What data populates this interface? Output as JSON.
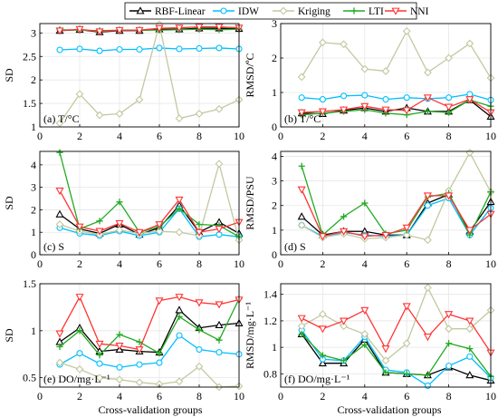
{
  "legend": [
    {
      "name": "RBF-Linear",
      "color": "#000000",
      "marker": "triangle-up"
    },
    {
      "name": "IDW",
      "color": "#00bfff",
      "marker": "circle"
    },
    {
      "name": "Kriging",
      "color": "#c2c8a0",
      "marker": "diamond"
    },
    {
      "name": "LTI",
      "color": "#22aa22",
      "marker": "plus"
    },
    {
      "name": "NNI",
      "color": "#ff3333",
      "marker": "triangle-down"
    }
  ],
  "xlabel": "Cross-validation groups",
  "chart_data": [
    {
      "id": "a",
      "type": "line",
      "panel_label": "(a) T/°C",
      "ylabel": "SD",
      "xlim": [
        0,
        10
      ],
      "ylim": [
        1,
        3.2
      ],
      "xticks": [
        "0",
        "2",
        "4",
        "6",
        "8",
        "10"
      ],
      "yticks": [
        "1",
        "1.5",
        "2",
        "2.5",
        "3"
      ],
      "x": [
        1,
        2,
        3,
        4,
        5,
        6,
        7,
        8,
        9,
        10
      ],
      "series": [
        {
          "name": "RBF-Linear",
          "values": [
            3.05,
            3.07,
            3.02,
            3.05,
            3.05,
            3.08,
            3.08,
            3.1,
            3.1,
            3.09
          ]
        },
        {
          "name": "IDW",
          "values": [
            2.64,
            2.66,
            2.62,
            2.65,
            2.65,
            2.68,
            2.66,
            2.67,
            2.68,
            2.66
          ]
        },
        {
          "name": "Kriging",
          "values": [
            1.08,
            1.7,
            1.25,
            1.28,
            1.58,
            3.18,
            1.18,
            1.28,
            1.38,
            1.58
          ]
        },
        {
          "name": "LTI",
          "values": [
            3.07,
            3.06,
            3.05,
            3.06,
            3.06,
            3.06,
            3.07,
            3.08,
            3.07,
            3.08
          ]
        },
        {
          "name": "NNI",
          "values": [
            3.05,
            3.08,
            3.03,
            3.06,
            3.06,
            3.1,
            3.11,
            3.13,
            3.13,
            3.11
          ]
        }
      ]
    },
    {
      "id": "b",
      "type": "line",
      "panel_label": "(b) T/°C",
      "ylabel": "RMSD/ºC",
      "xlim": [
        0,
        10
      ],
      "ylim": [
        0,
        3
      ],
      "xticks": [
        "0",
        "2",
        "4",
        "6",
        "8",
        "10"
      ],
      "yticks": [
        "0",
        "1",
        "2",
        "3"
      ],
      "x": [
        1,
        2,
        3,
        4,
        5,
        6,
        7,
        8,
        9,
        10
      ],
      "series": [
        {
          "name": "RBF-Linear",
          "values": [
            0.4,
            0.38,
            0.48,
            0.55,
            0.45,
            0.55,
            0.45,
            0.45,
            0.78,
            0.3
          ]
        },
        {
          "name": "IDW",
          "values": [
            0.85,
            0.8,
            0.9,
            0.92,
            0.8,
            0.85,
            0.82,
            0.85,
            0.95,
            0.78
          ]
        },
        {
          "name": "Kriging",
          "values": [
            1.45,
            2.45,
            2.4,
            1.68,
            1.62,
            2.78,
            1.58,
            2.0,
            2.42,
            1.42
          ]
        },
        {
          "name": "LTI",
          "values": [
            0.35,
            0.4,
            0.45,
            0.5,
            0.4,
            0.35,
            0.45,
            0.42,
            0.78,
            0.6
          ]
        },
        {
          "name": "NNI",
          "values": [
            0.42,
            0.45,
            0.5,
            0.6,
            0.5,
            0.48,
            0.85,
            0.58,
            0.8,
            0.42
          ]
        }
      ]
    },
    {
      "id": "c",
      "type": "line",
      "panel_label": "(c) S",
      "ylabel": "SD",
      "xlim": [
        0,
        10
      ],
      "ylim": [
        0,
        4.6
      ],
      "xticks": [
        "0",
        "2",
        "4",
        "6",
        "8",
        "10"
      ],
      "yticks": [
        "0",
        "1",
        "2",
        "3",
        "4"
      ],
      "x": [
        1,
        2,
        3,
        4,
        5,
        6,
        7,
        8,
        9,
        10
      ],
      "series": [
        {
          "name": "RBF-Linear",
          "values": [
            1.8,
            1.15,
            0.95,
            1.35,
            0.9,
            1.2,
            2.2,
            1.0,
            1.45,
            0.95
          ]
        },
        {
          "name": "IDW",
          "values": [
            1.2,
            0.95,
            0.85,
            1.05,
            0.85,
            1.0,
            2.05,
            0.8,
            0.9,
            0.8
          ]
        },
        {
          "name": "Kriging",
          "values": [
            1.35,
            1.05,
            0.9,
            1.1,
            0.95,
            1.05,
            1.0,
            0.85,
            4.05,
            0.65
          ]
        },
        {
          "name": "LTI",
          "values": [
            4.55,
            1.15,
            1.5,
            2.35,
            1.0,
            1.25,
            2.05,
            1.35,
            1.3,
            0.8
          ]
        },
        {
          "name": "NNI",
          "values": [
            2.85,
            1.25,
            1.05,
            1.4,
            1.0,
            1.35,
            2.45,
            1.0,
            1.15,
            1.45
          ]
        }
      ]
    },
    {
      "id": "d",
      "type": "line",
      "panel_label": "(d) S",
      "ylabel": "RMSD/PSU",
      "xlim": [
        0,
        10
      ],
      "ylim": [
        0,
        4.2
      ],
      "xticks": [
        "0",
        "2",
        "4",
        "6",
        "8",
        "10"
      ],
      "yticks": [
        "0",
        "1",
        "2",
        "3",
        "4"
      ],
      "x": [
        1,
        2,
        3,
        4,
        5,
        6,
        7,
        8,
        9,
        10
      ],
      "series": [
        {
          "name": "RBF-Linear",
          "values": [
            1.55,
            0.8,
            0.95,
            0.95,
            0.8,
            0.8,
            2.1,
            2.45,
            0.95,
            2.15
          ]
        },
        {
          "name": "IDW",
          "values": [
            1.2,
            0.75,
            0.9,
            0.8,
            0.75,
            0.8,
            2.0,
            2.3,
            0.8,
            1.9
          ]
        },
        {
          "name": "Kriging",
          "values": [
            1.2,
            0.7,
            0.85,
            0.65,
            0.7,
            0.8,
            0.6,
            2.6,
            4.15,
            2.55
          ]
        },
        {
          "name": "LTI",
          "values": [
            3.6,
            0.8,
            1.55,
            2.1,
            0.85,
            1.0,
            2.35,
            2.5,
            0.8,
            2.55
          ]
        },
        {
          "name": "NNI",
          "values": [
            2.65,
            0.75,
            0.95,
            0.75,
            0.8,
            1.1,
            2.4,
            2.4,
            1.0,
            1.65
          ]
        }
      ]
    },
    {
      "id": "e",
      "type": "line",
      "panel_label": "(e) DO/mg·L⁻¹",
      "ylabel": "SD",
      "xlim": [
        0,
        10
      ],
      "ylim": [
        0.4,
        1.5
      ],
      "xticks": [
        "0",
        "2",
        "4",
        "6",
        "8",
        "10"
      ],
      "yticks": [
        "0.5",
        "1",
        "1.5"
      ],
      "x": [
        1,
        2,
        3,
        4,
        5,
        6,
        7,
        8,
        9,
        10
      ],
      "series": [
        {
          "name": "RBF-Linear",
          "values": [
            0.88,
            1.03,
            0.78,
            0.8,
            0.78,
            0.77,
            1.22,
            1.03,
            1.06,
            1.08
          ]
        },
        {
          "name": "IDW",
          "values": [
            0.64,
            0.76,
            0.65,
            0.61,
            0.64,
            0.66,
            0.95,
            0.8,
            0.77,
            0.75
          ]
        },
        {
          "name": "Kriging",
          "values": [
            0.66,
            0.59,
            0.5,
            0.48,
            0.45,
            0.43,
            0.46,
            0.62,
            0.4,
            0.41
          ]
        },
        {
          "name": "LTI",
          "values": [
            0.83,
            1.0,
            0.74,
            0.96,
            0.88,
            0.76,
            1.15,
            1.01,
            0.9,
            1.34
          ]
        },
        {
          "name": "NNI",
          "values": [
            0.97,
            1.36,
            0.86,
            0.84,
            0.8,
            1.32,
            1.36,
            1.3,
            1.28,
            1.33
          ]
        }
      ]
    },
    {
      "id": "f",
      "type": "line",
      "panel_label": "(f) DO/mg·L⁻¹",
      "ylabel": "RMSD/mg·L⁻¹",
      "xlim": [
        0,
        10
      ],
      "ylim": [
        0.7,
        1.48
      ],
      "xticks": [
        "0",
        "2",
        "4",
        "6",
        "8",
        "10"
      ],
      "yticks": [
        "0.8",
        "1",
        "1.2",
        "1.4"
      ],
      "x": [
        1,
        2,
        3,
        4,
        5,
        6,
        7,
        8,
        9,
        10
      ],
      "series": [
        {
          "name": "RBF-Linear",
          "values": [
            1.1,
            0.88,
            0.88,
            1.06,
            0.81,
            0.8,
            0.79,
            0.85,
            0.79,
            0.75
          ]
        },
        {
          "name": "IDW",
          "values": [
            1.13,
            0.91,
            0.9,
            1.08,
            0.83,
            0.81,
            0.71,
            0.86,
            0.93,
            0.77
          ]
        },
        {
          "name": "Kriging",
          "values": [
            1.16,
            1.25,
            1.16,
            1.1,
            0.9,
            1.03,
            1.45,
            1.14,
            1.14,
            1.28
          ]
        },
        {
          "name": "LTI",
          "values": [
            1.1,
            0.94,
            0.9,
            1.02,
            0.81,
            0.8,
            0.79,
            1.03,
            0.99,
            0.78
          ]
        },
        {
          "name": "NNI",
          "values": [
            1.22,
            1.14,
            1.2,
            1.28,
            0.99,
            1.31,
            1.08,
            1.25,
            1.2,
            0.96
          ]
        }
      ]
    }
  ]
}
